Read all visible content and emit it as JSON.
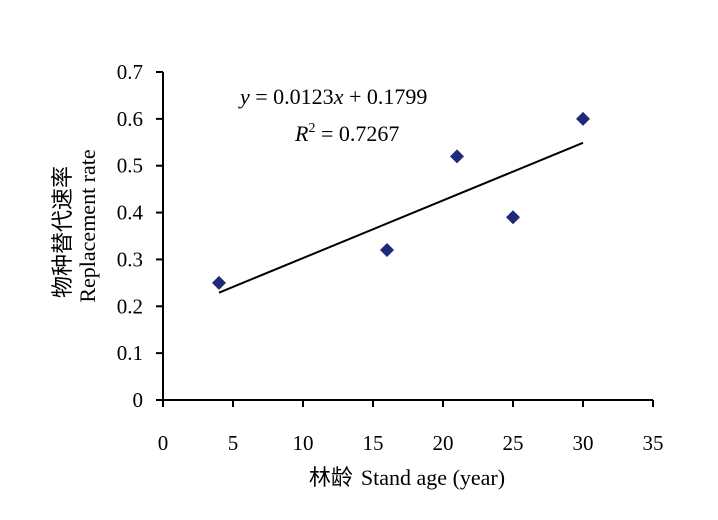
{
  "chart_data": {
    "type": "scatter",
    "xlabel_cn": "林龄",
    "xlabel_en": "Stand age (year)",
    "ylabel_cn": "物种替代速率",
    "ylabel_en": "Replacement rate",
    "xlim": [
      0,
      35
    ],
    "ylim": [
      0,
      0.7
    ],
    "xticks": [
      "0",
      "5",
      "10",
      "15",
      "20",
      "25",
      "30",
      "35"
    ],
    "yticks": [
      "0",
      "0.1",
      "0.2",
      "0.3",
      "0.4",
      "0.5",
      "0.6",
      "0.7"
    ],
    "grid": false,
    "points": [
      {
        "x": 4,
        "y": 0.25
      },
      {
        "x": 16,
        "y": 0.32
      },
      {
        "x": 21,
        "y": 0.52
      },
      {
        "x": 25,
        "y": 0.39
      },
      {
        "x": 30,
        "y": 0.6
      }
    ],
    "trendline": {
      "slope": 0.0123,
      "intercept": 0.1799,
      "x_range": [
        4,
        30
      ],
      "r_squared": "0.7267"
    },
    "equation": {
      "y_var": "y",
      "equals_slope": " = 0.0123",
      "x_var": "x",
      "plus_intercept": " + 0.1799",
      "r_var": "R",
      "r_exp": "2",
      "r_value": " = 0.7267"
    },
    "colors": {
      "marker": "#1f2a78",
      "line": "#000000",
      "axis": "#000000"
    }
  }
}
